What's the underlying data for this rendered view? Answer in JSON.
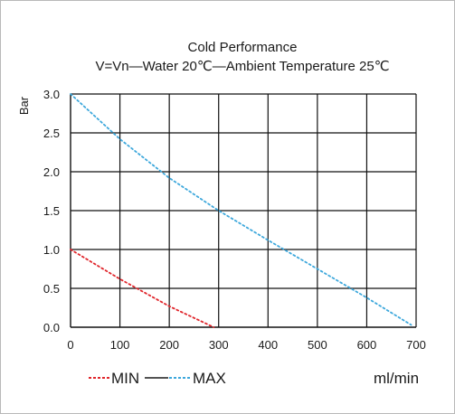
{
  "chart_data": {
    "type": "line",
    "title": "Cold Performance",
    "subtitle": "V=Vn—Water 20℃—Ambient Temperature 25℃",
    "xlabel": "ml/min",
    "ylabel": "Bar",
    "xlim": [
      0,
      700
    ],
    "ylim": [
      0,
      3.0
    ],
    "x_ticks": [
      "0",
      "100",
      "200",
      "300",
      "400",
      "500",
      "600",
      "700"
    ],
    "y_ticks": [
      "0.0",
      "0.5",
      "1.0",
      "1.5",
      "2.0",
      "2.5",
      "3.0"
    ],
    "grid": true,
    "legend_position": "bottom",
    "series": [
      {
        "name": "MIN",
        "color": "#e0262c",
        "style": "dotted",
        "x": [
          0,
          100,
          200,
          290
        ],
        "y": [
          1.0,
          0.62,
          0.27,
          0.0
        ]
      },
      {
        "name": "MAX",
        "color": "#3ea8dc",
        "style": "dotted",
        "x": [
          0,
          100,
          200,
          300,
          400,
          500,
          600,
          690
        ],
        "y": [
          3.0,
          2.42,
          1.92,
          1.5,
          1.12,
          0.75,
          0.38,
          0.03
        ]
      }
    ],
    "legend_separator_color": "#1a1a1a"
  }
}
